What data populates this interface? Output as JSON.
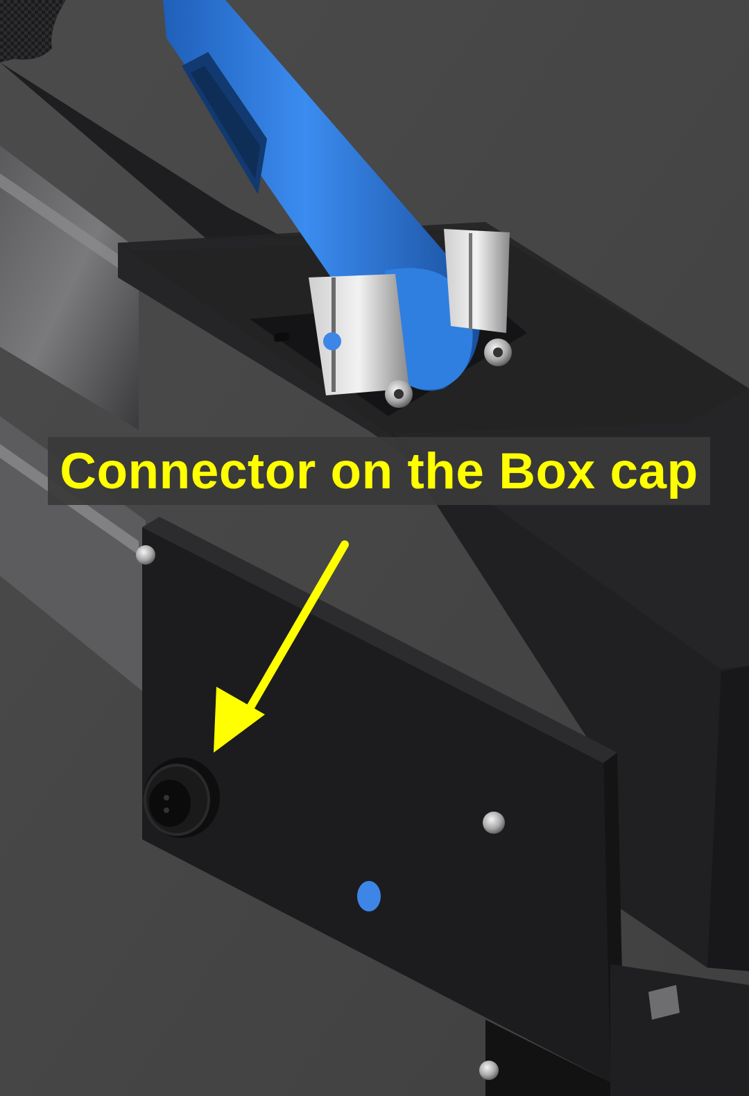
{
  "annotation": {
    "label": "Connector on the Box cap",
    "text_color": "#FFFF00",
    "arrow_color": "#FFFF00"
  },
  "colors": {
    "background": "#454545",
    "lever_blue": "#2f7fe0",
    "indicator_dot": "#3d86e8",
    "enclosure_black": "#1c1c1e"
  },
  "icons": {
    "callout_arrow": "arrow-down-left-icon"
  }
}
